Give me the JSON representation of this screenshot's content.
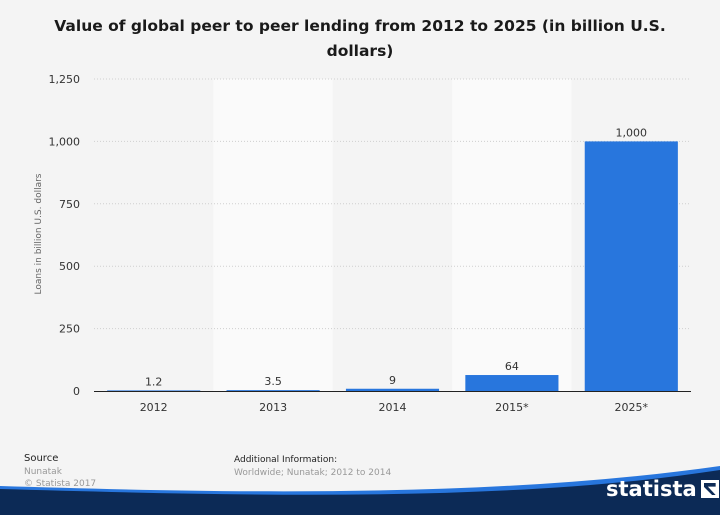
{
  "chart_data": {
    "type": "bar",
    "title": "Value of global peer to peer lending from 2012 to 2025 (in billion U.S. dollars)",
    "categories": [
      "2012",
      "2013",
      "2014",
      "2015*",
      "2025*"
    ],
    "values": [
      1.2,
      3.5,
      9,
      64,
      1000
    ],
    "value_labels": [
      "1.2",
      "3.5",
      "9",
      "64",
      "1,000"
    ],
    "ylabel": "Loans in billion U.S. dollars",
    "xlabel": "",
    "ylim": [
      0,
      1250
    ],
    "yticks": [
      0,
      250,
      500,
      750,
      1000,
      1250
    ],
    "ytick_labels": [
      "0",
      "250",
      "500",
      "750",
      "1,000",
      "1,250"
    ],
    "bar_color": "#2876dd",
    "grid": true,
    "alternating_bands": true
  },
  "footer": {
    "source_heading": "Source",
    "source_name": "Nunatak",
    "copyright": "© Statista 2017",
    "additional_heading": "Additional Information:",
    "additional_text": "Worldwide; Nunatak; 2012 to 2014"
  },
  "brand": {
    "name": "statista",
    "color": "#0c2a56",
    "accent": "#2876dd"
  }
}
